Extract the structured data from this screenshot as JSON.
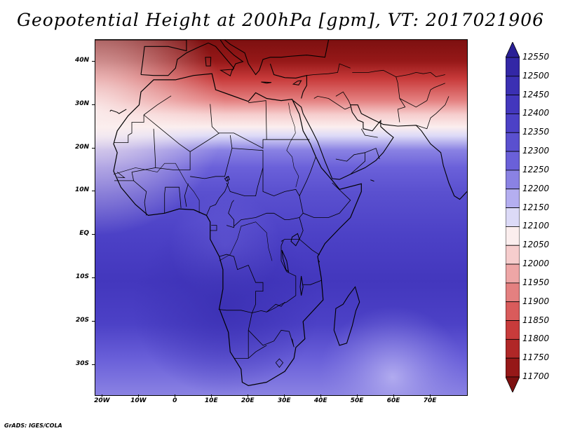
{
  "title": "Geopotential Height at 200hPa [gpm], VT: 2017021906",
  "credit": "GrADS: IGES/COLA",
  "map": {
    "lon_range": [
      -22,
      80
    ],
    "lat_range": [
      -37,
      45
    ],
    "lat_labels": [
      {
        "lat": 40,
        "text": "40N"
      },
      {
        "lat": 30,
        "text": "30N"
      },
      {
        "lat": 20,
        "text": "20N"
      },
      {
        "lat": 10,
        "text": "10N"
      },
      {
        "lat": 0,
        "text": "EQ"
      },
      {
        "lat": -10,
        "text": "10S"
      },
      {
        "lat": -20,
        "text": "20S"
      },
      {
        "lat": -30,
        "text": "30S"
      }
    ],
    "lon_labels": [
      {
        "lon": -20,
        "text": "20W"
      },
      {
        "lon": -10,
        "text": "10W"
      },
      {
        "lon": 0,
        "text": "0"
      },
      {
        "lon": 10,
        "text": "10E"
      },
      {
        "lon": 20,
        "text": "20E"
      },
      {
        "lon": 30,
        "text": "30E"
      },
      {
        "lon": 40,
        "text": "40E"
      },
      {
        "lon": 50,
        "text": "50E"
      },
      {
        "lon": 60,
        "text": "60E"
      },
      {
        "lon": 70,
        "text": "70E"
      }
    ]
  },
  "colorbar": {
    "levels": [
      "12550",
      "12500",
      "12450",
      "12400",
      "12350",
      "12300",
      "12250",
      "12200",
      "12150",
      "12100",
      "12050",
      "12000",
      "11950",
      "11900",
      "11850",
      "11800",
      "11750",
      "11700"
    ],
    "colors": [
      "#2a1f96",
      "#3327a6",
      "#3b30b3",
      "#4337bd",
      "#4c41c6",
      "#5a50cf",
      "#6a60d9",
      "#8a82e3",
      "#b4aef0",
      "#dcdaf7",
      "#fbeeee",
      "#f6cdcd",
      "#eea6a6",
      "#e48080",
      "#d95b5b",
      "#c83b3b",
      "#b02727",
      "#961818",
      "#7d1010"
    ]
  }
}
